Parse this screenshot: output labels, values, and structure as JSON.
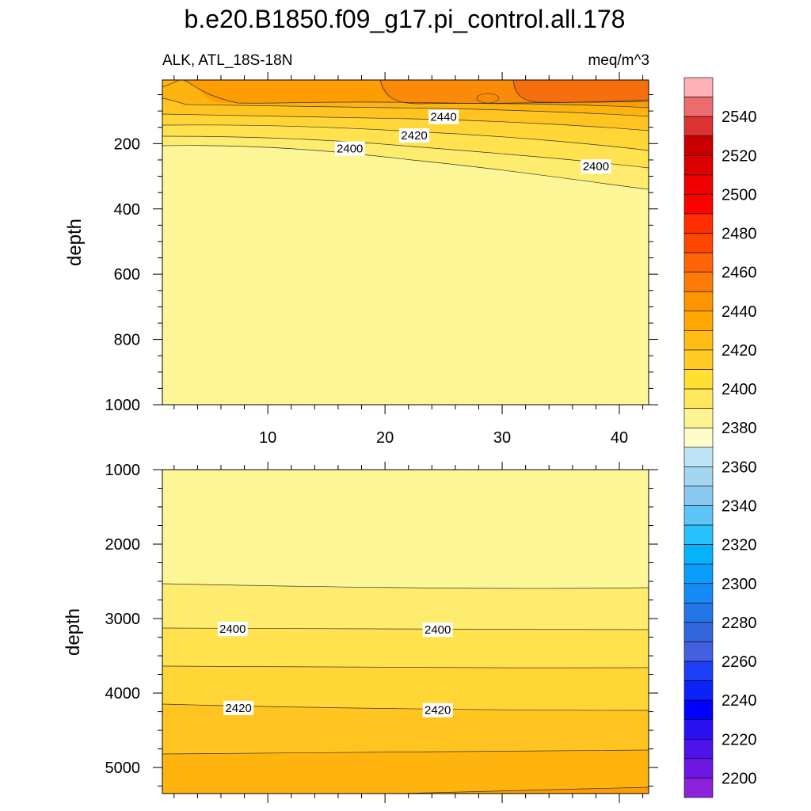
{
  "title": "b.e20.B1850.f09_g17.pi_control.all.178",
  "subtitle_left": "ALK, ATL_18S-18N",
  "subtitle_right": "meq/m^3",
  "chart_data": [
    {
      "type": "contour",
      "panel": "upper",
      "ylabel": "depth",
      "xlabel": "",
      "xlim": [
        1,
        42.5
      ],
      "ylim": [
        1000,
        5
      ],
      "xticks": [
        10,
        20,
        30,
        40
      ],
      "yticks": [
        200,
        400,
        600,
        800,
        1000
      ],
      "contour_labels": [
        {
          "text": "2440",
          "x": 25,
          "y": 118
        },
        {
          "text": "2420",
          "x": 22.5,
          "y": 175
        },
        {
          "text": "2400",
          "x": 17,
          "y": 215
        },
        {
          "text": "2400",
          "x": 38,
          "y": 270
        }
      ],
      "bands_from_surface": [
        {
          "value_range": [
            2460,
            2470
          ],
          "color": "#f66f0e"
        },
        {
          "value_range": [
            2450,
            2460
          ],
          "color": "#fa8a08"
        },
        {
          "value_range": [
            2440,
            2450
          ],
          "color": "#fd9c03"
        },
        {
          "value_range": [
            2430,
            2440
          ],
          "color": "#ffb30f"
        },
        {
          "value_range": [
            2420,
            2430
          ],
          "color": "#ffc420"
        },
        {
          "value_range": [
            2410,
            2420
          ],
          "color": "#ffd636"
        },
        {
          "value_range": [
            2400,
            2410
          ],
          "color": "#ffe24d"
        },
        {
          "value_range": [
            2390,
            2400
          ],
          "color": "#feec6e"
        },
        {
          "value_range": [
            2380,
            2390
          ],
          "color": "#fdf697"
        }
      ]
    },
    {
      "type": "contour",
      "panel": "lower",
      "ylabel": "depth",
      "xlabel": "",
      "xlim": [
        1,
        42.5
      ],
      "ylim": [
        5350,
        1000
      ],
      "yticks": [
        1000,
        2000,
        3000,
        4000,
        5000
      ],
      "contour_labels": [
        {
          "text": "2400",
          "x": 7,
          "y": 3140
        },
        {
          "text": "2400",
          "x": 24.5,
          "y": 3150
        },
        {
          "text": "2420",
          "x": 7.5,
          "y": 4200
        },
        {
          "text": "2420",
          "x": 24.5,
          "y": 4230
        }
      ],
      "bands_from_top": [
        {
          "value_range": [
            2380,
            2390
          ],
          "color": "#fdf697"
        },
        {
          "value_range": [
            2390,
            2400
          ],
          "color": "#feec6e"
        },
        {
          "value_range": [
            2400,
            2410
          ],
          "color": "#ffe24d"
        },
        {
          "value_range": [
            2410,
            2420
          ],
          "color": "#ffd636"
        },
        {
          "value_range": [
            2420,
            2430
          ],
          "color": "#ffc420"
        },
        {
          "value_range": [
            2430,
            2440
          ],
          "color": "#ffb30f"
        },
        {
          "value_range": [
            2440,
            2450
          ],
          "color": "#fd9c03"
        }
      ]
    }
  ],
  "colorbar": {
    "labels": [
      "2540",
      "2520",
      "2500",
      "2480",
      "2460",
      "2440",
      "2420",
      "2400",
      "2380",
      "2360",
      "2340",
      "2320",
      "2300",
      "2280",
      "2260",
      "2240",
      "2220",
      "2200"
    ],
    "colors_top_to_bottom": [
      "#fcb2b6",
      "#ec6b6c",
      "#dc3232",
      "#c80000",
      "#dc0000",
      "#ee0000",
      "#ff0000",
      "#ff2d00",
      "#ff4600",
      "#ff6308",
      "#fe7a06",
      "#fd9503",
      "#fea702",
      "#ffbd14",
      "#ffcb24",
      "#ffdf33",
      "#ffe85b",
      "#fef392",
      "#fefcc8",
      "#bde4f5",
      "#a4d6f1",
      "#8ac9ef",
      "#5fc4f6",
      "#29c2fc",
      "#06b2fb",
      "#0a9df9",
      "#1589f4",
      "#2476e6",
      "#3366dc",
      "#4460e0",
      "#1d3ef5",
      "#0b23f7",
      "#0000ff",
      "#2c10f4",
      "#4b13ea",
      "#6c17e1",
      "#8c23db"
    ]
  }
}
